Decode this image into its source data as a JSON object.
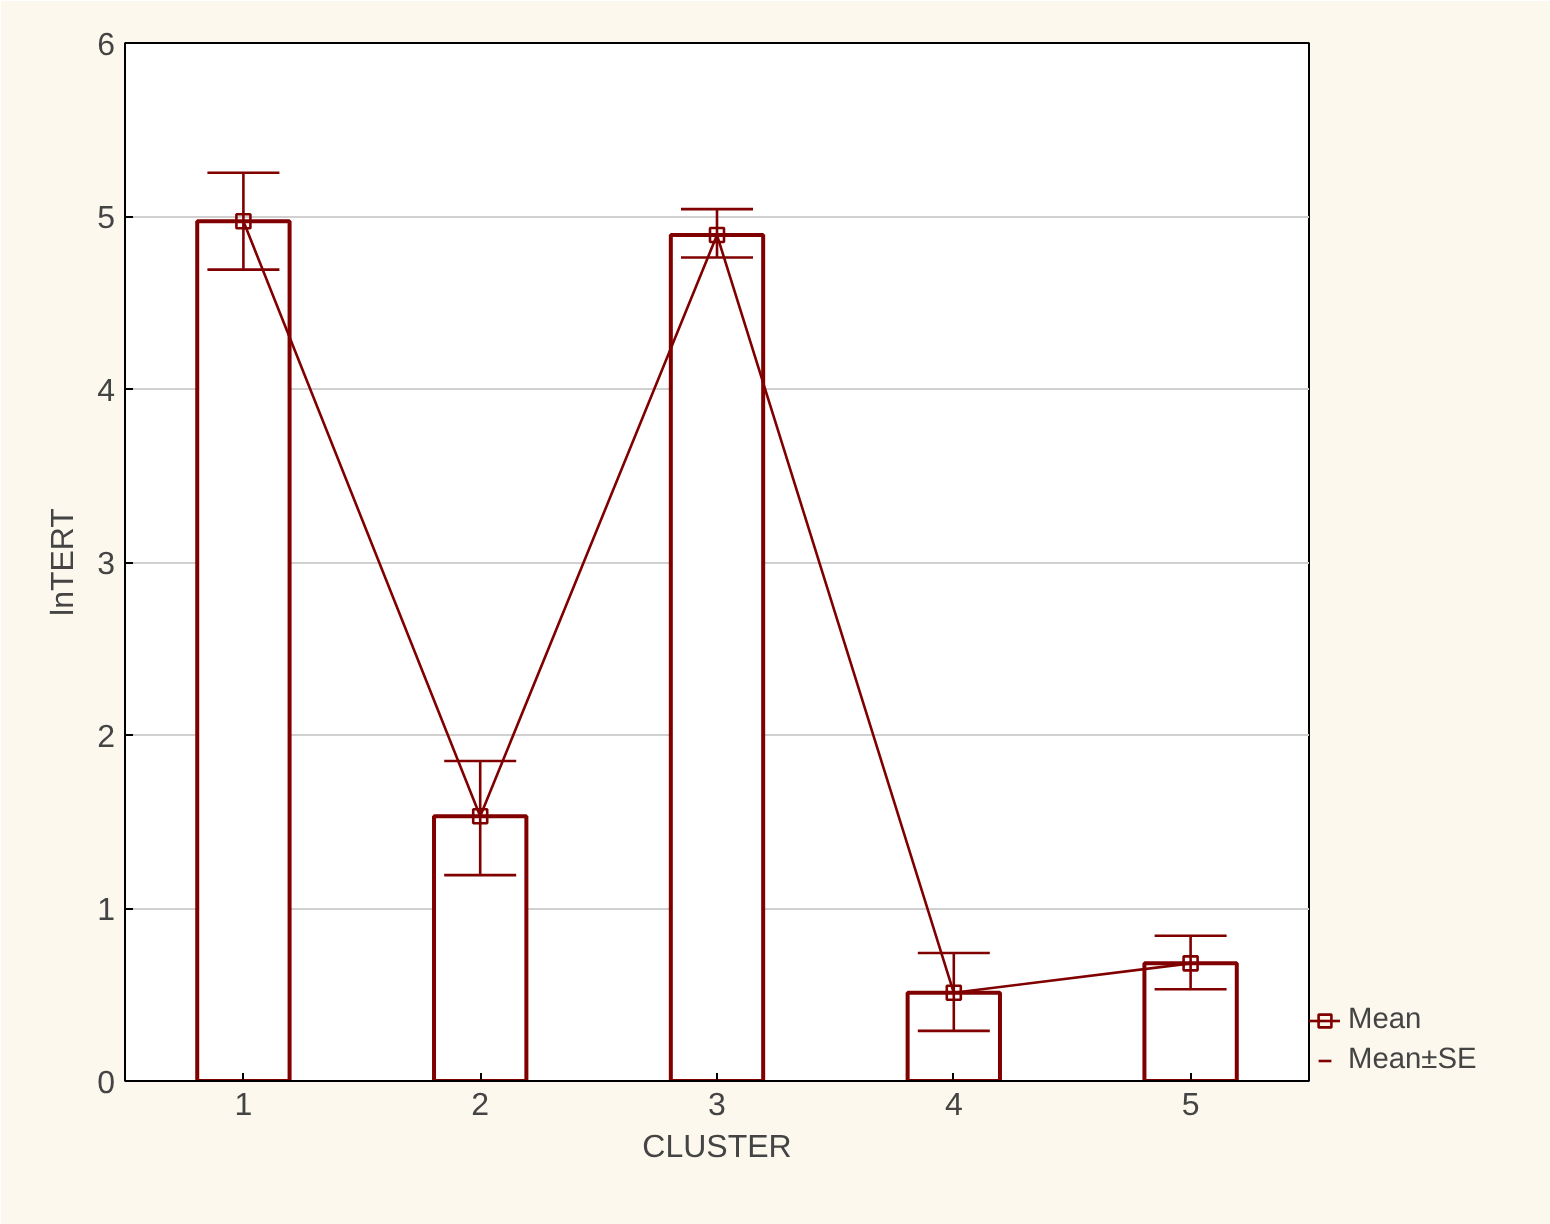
{
  "chart_data": {
    "type": "bar",
    "xlabel": "CLUSTER",
    "ylabel": "lnTERT",
    "categories": [
      "1",
      "2",
      "3",
      "4",
      "5"
    ],
    "series": [
      {
        "color": "#800000",
        "values": [
          4.97,
          1.53,
          4.89,
          0.51,
          0.68
        ]
      },
      {
        "type": "line",
        "name": "Mean",
        "color": "#800000",
        "values": [
          4.97,
          1.53,
          4.89,
          0.51,
          0.68
        ],
        "errors": [
          [
            4.69,
            5.25
          ],
          [
            1.19,
            1.85
          ],
          [
            4.76,
            5.04
          ],
          [
            0.29,
            0.74
          ],
          [
            0.53,
            0.84
          ]
        ]
      }
    ],
    "annotations": [
      "Mean±SE"
    ],
    "ylim": [
      0,
      6
    ],
    "yticks": [
      0,
      1,
      2,
      3,
      4,
      5,
      6
    ],
    "grid": "y",
    "legend": "bottom right",
    "marker": "square"
  }
}
